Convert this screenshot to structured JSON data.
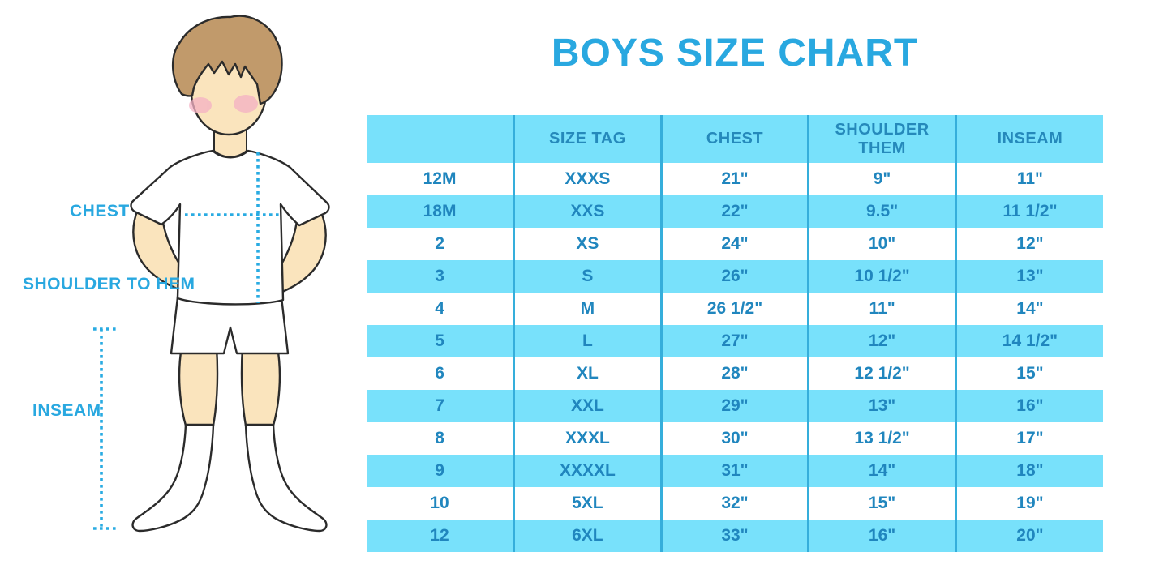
{
  "title": "BOYS SIZE CHART",
  "measurements": {
    "chest": "CHEST",
    "shoulder_to_hem": "SHOULDER TO HEM",
    "inseam": "INSEAM"
  },
  "chart_data": {
    "type": "table",
    "title": "BOYS SIZE CHART",
    "columns": [
      "",
      "SIZE TAG",
      "CHEST",
      "SHOULDER THEM",
      "INSEAM"
    ],
    "rows": [
      [
        "12M",
        "XXXS",
        "21\"",
        "9\"",
        "11\""
      ],
      [
        "18M",
        "XXS",
        "22\"",
        "9.5\"",
        "11 1/2\""
      ],
      [
        "2",
        "XS",
        "24\"",
        "10\"",
        "12\""
      ],
      [
        "3",
        "S",
        "26\"",
        "10 1/2\"",
        "13\""
      ],
      [
        "4",
        "M",
        "26 1/2\"",
        "11\"",
        "14\""
      ],
      [
        "5",
        "L",
        "27\"",
        "12\"",
        "14 1/2\""
      ],
      [
        "6",
        "XL",
        "28\"",
        "12 1/2\"",
        "15\""
      ],
      [
        "7",
        "XXL",
        "29\"",
        "13\"",
        "16\""
      ],
      [
        "8",
        "XXXL",
        "30\"",
        "13 1/2\"",
        "17\""
      ],
      [
        "9",
        "XXXXL",
        "31\"",
        "14\"",
        "18\""
      ],
      [
        "10",
        "5XL",
        "32\"",
        "15\"",
        "19\""
      ],
      [
        "12",
        "6XL",
        "33\"",
        "16\"",
        "20\""
      ]
    ],
    "row_shading": "alternating, first data row white then cyan",
    "legend_position": "none"
  },
  "colors": {
    "accent": "#29A8E0",
    "table_fill": "#78E1FB",
    "table_text": "#2086BE",
    "divider": "#35AEDB",
    "dotted_line": "#29ABE2",
    "skin": "#FAE4BD",
    "hair": "#C19A6B",
    "blush": "#F4B1C4",
    "outline": "#2B2B2B"
  }
}
